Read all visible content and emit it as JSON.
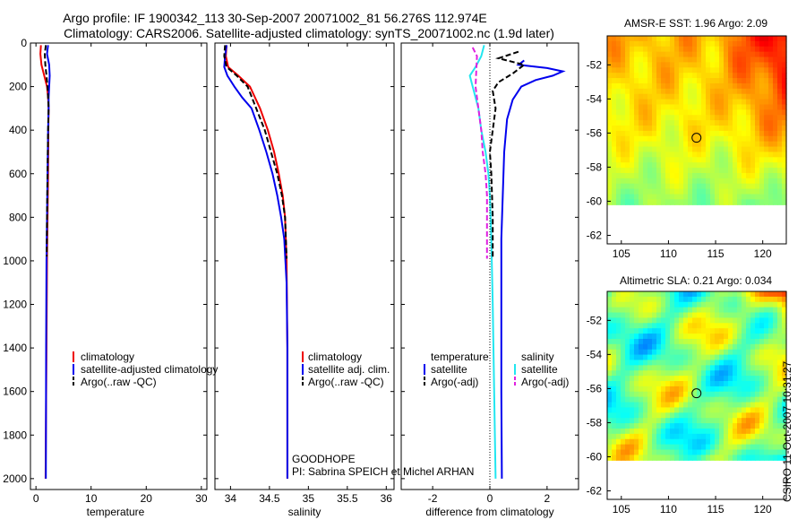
{
  "header": {
    "title_line1": "Argo profile: IF 1900342_113 30-Sep-2007 20071002_81 56.276S 112.974E",
    "title_line2": "Climatology: CARS2006. Satellite-adjusted climatology: synTS_20071002.nc (1.9d later)"
  },
  "side_label": "CSIRO 11-Oct-2007 10:31:27",
  "colors": {
    "red": "#ee0000",
    "blue": "#0000ee",
    "black": "#000000",
    "cyan": "#22e6f0",
    "magenta": "#e020e0"
  },
  "chart_data": [
    {
      "id": "temperature",
      "type": "line",
      "xlabel": "temperature",
      "ylabel": "",
      "xlim": [
        -1,
        31
      ],
      "ylim": [
        2050,
        0
      ],
      "xticks": [
        0,
        10,
        20,
        30
      ],
      "yticks": [
        0,
        200,
        400,
        600,
        800,
        1000,
        1200,
        1400,
        1600,
        1800,
        2000
      ],
      "y_reversed": true,
      "series": [
        {
          "name": "climatology",
          "color": "red",
          "dash": "solid",
          "x": [
            0.9,
            0.8,
            1.0,
            1.5,
            2.0,
            2.2,
            2.3,
            2.25,
            2.2,
            2.1,
            2.0,
            1.9,
            1.8,
            1.75
          ],
          "y": [
            10,
            50,
            100,
            150,
            200,
            250,
            300,
            400,
            600,
            800,
            1000,
            1400,
            1800,
            2000
          ]
        },
        {
          "name": "satellite-adjusted climatology",
          "color": "blue",
          "dash": "solid",
          "x": [
            2.2,
            2.0,
            2.4,
            2.5,
            2.4,
            2.3,
            2.3,
            2.2,
            2.1,
            2.0,
            1.9,
            1.85,
            1.8
          ],
          "y": [
            10,
            50,
            100,
            150,
            200,
            250,
            300,
            400,
            600,
            800,
            1000,
            1400,
            2000
          ]
        },
        {
          "name": "Argo(..raw -QC)",
          "color": "black",
          "dash": "dashed",
          "x": [
            1.8,
            1.6,
            1.7,
            1.9,
            2.1,
            2.2,
            2.3,
            2.2,
            2.1,
            2.0,
            1.95
          ],
          "y": [
            10,
            50,
            100,
            150,
            200,
            250,
            300,
            400,
            600,
            800,
            980
          ]
        }
      ]
    },
    {
      "id": "salinity",
      "type": "line",
      "xlabel": "salinity",
      "ylabel": "",
      "xlim": [
        33.8,
        36.1
      ],
      "ylim": [
        2050,
        0
      ],
      "xticks": [
        34,
        34.5,
        35,
        35.5,
        36
      ],
      "yticks": [
        0,
        200,
        400,
        600,
        800,
        1000,
        1200,
        1400,
        1600,
        1800,
        2000
      ],
      "y_reversed": true,
      "series": [
        {
          "name": "climatology",
          "color": "red",
          "dash": "solid",
          "x": [
            33.95,
            33.94,
            33.97,
            34.1,
            34.25,
            34.38,
            34.48,
            34.56,
            34.62,
            34.67,
            34.7,
            34.72,
            34.73,
            34.73
          ],
          "y": [
            10,
            60,
            110,
            150,
            200,
            300,
            400,
            500,
            600,
            700,
            800,
            1000,
            1400,
            2000
          ]
        },
        {
          "name": "satellite adj. clim.",
          "color": "blue",
          "dash": "solid",
          "x": [
            33.95,
            33.93,
            33.92,
            33.96,
            34.05,
            34.15,
            34.27,
            34.37,
            34.46,
            34.54,
            34.6,
            34.65,
            34.69,
            34.72,
            34.73,
            34.73
          ],
          "y": [
            10,
            60,
            110,
            150,
            200,
            250,
            300,
            400,
            500,
            600,
            700,
            800,
            900,
            1100,
            1400,
            2000
          ]
        },
        {
          "name": "Argo(..raw -QC)",
          "color": "black",
          "dash": "dashed",
          "x": [
            33.93,
            33.92,
            33.95,
            34.08,
            34.22,
            34.33,
            34.44,
            34.52,
            34.6,
            34.66,
            34.7,
            34.72
          ],
          "y": [
            10,
            60,
            110,
            150,
            200,
            300,
            400,
            500,
            600,
            700,
            800,
            990
          ]
        }
      ]
    },
    {
      "id": "difference",
      "type": "line",
      "xlabel": "difference from climatology",
      "ylabel": "",
      "xlim": [
        -3.1,
        3.1
      ],
      "ylim": [
        2050,
        0
      ],
      "xticks": [
        -2,
        0,
        2
      ],
      "yticks": [
        0,
        200,
        400,
        600,
        800,
        1000,
        1200,
        1400,
        1600,
        1800,
        2000
      ],
      "y_reversed": true,
      "series": [
        {
          "name": "temperature satellite",
          "color": "blue",
          "dash": "solid",
          "x": [
            1.2,
            1.0,
            2.0,
            2.55,
            2.2,
            1.6,
            1.1,
            0.8,
            0.6,
            0.5,
            0.45,
            0.4,
            0.4,
            0.4,
            0.42
          ],
          "y": [
            80,
            100,
            115,
            130,
            150,
            170,
            200,
            260,
            350,
            500,
            700,
            900,
            1200,
            1600,
            2000
          ]
        },
        {
          "name": "salinity satellite",
          "color": "cyan",
          "dash": "solid",
          "x": [
            -0.2,
            -0.3,
            -0.5,
            -0.7,
            -0.6,
            -0.4,
            -0.3,
            -0.15,
            -0.05,
            0.0,
            0.05,
            0.1,
            0.15,
            0.2
          ],
          "y": [
            10,
            60,
            110,
            150,
            200,
            300,
            400,
            500,
            600,
            700,
            900,
            1200,
            1600,
            2000
          ]
        },
        {
          "name": "temperature Argo(-adj)",
          "color": "black",
          "dash": "dashed",
          "x": [
            1.0,
            0.3,
            1.2,
            0.8,
            0.3,
            0.1,
            0.2,
            0.1,
            0.0,
            0.05,
            0.1,
            0.1
          ],
          "y": [
            40,
            70,
            100,
            140,
            180,
            220,
            300,
            400,
            500,
            600,
            800,
            990
          ]
        },
        {
          "name": "salinity Argo(-adj)",
          "color": "magenta",
          "dash": "dashed",
          "x": [
            -0.6,
            -0.45,
            -0.5,
            -0.4,
            -0.3,
            -0.25,
            -0.15,
            -0.1,
            -0.1,
            -0.1
          ],
          "y": [
            20,
            60,
            200,
            300,
            400,
            500,
            600,
            700,
            800,
            990
          ]
        },
        {
          "name": "zero reference",
          "color": "black",
          "dash": "dotted",
          "x": [
            0,
            0
          ],
          "y": [
            0,
            2050
          ]
        }
      ]
    },
    {
      "id": "sst-map",
      "type": "heatmap",
      "title": "AMSR-E SST: 1.96 Argo: 2.09",
      "xlim": [
        103.5,
        122.5
      ],
      "ylim": [
        -62.5,
        -50.3
      ],
      "xticks": [
        105,
        110,
        115,
        120
      ],
      "yticks": [
        -52,
        -54,
        -56,
        -58,
        -60,
        -62
      ],
      "data_extent": {
        "lon": [
          103.5,
          122.5
        ],
        "lat": [
          -60.2,
          -50.3
        ]
      },
      "marker": {
        "lon": 112.974,
        "lat": -56.276
      },
      "colormap": "jet",
      "note": "warmer (orange/red) in north and north-east, yellow-green centre, cyan south"
    },
    {
      "id": "sla-map",
      "type": "heatmap",
      "title": "Altimetric SLA: 0.21 Argo: 0.034",
      "xlim": [
        103.5,
        122.5
      ],
      "ylim": [
        -62.5,
        -50.3
      ],
      "xticks": [
        105,
        110,
        115,
        120
      ],
      "yticks": [
        -52,
        -54,
        -56,
        -58,
        -60,
        -62
      ],
      "data_extent": {
        "lon": [
          103.5,
          122.5
        ],
        "lat": [
          -60.2,
          -50.3
        ]
      },
      "marker": {
        "lon": 112.974,
        "lat": -56.276
      },
      "colormap": "jet",
      "note": "mottled yellow-green field with red anomaly in north-east corner and cyan patches"
    }
  ],
  "legends": {
    "temperature": [
      "climatology",
      "satellite-adjusted climatology",
      "Argo(..raw -QC)"
    ],
    "salinity": [
      "climatology",
      "satellite adj. clim.",
      "Argo(..raw -QC)"
    ],
    "difference_col1_title": "temperature",
    "difference_col2_title": "salinity",
    "difference_col1": [
      "satellite",
      "Argo(-adj)"
    ],
    "difference_col2": [
      "satellite",
      "Argo(-adj)"
    ]
  },
  "annotation": {
    "line1": "GOODHOPE",
    "line2": "PI: Sabrina SPEICH et Michel ARHAN"
  }
}
